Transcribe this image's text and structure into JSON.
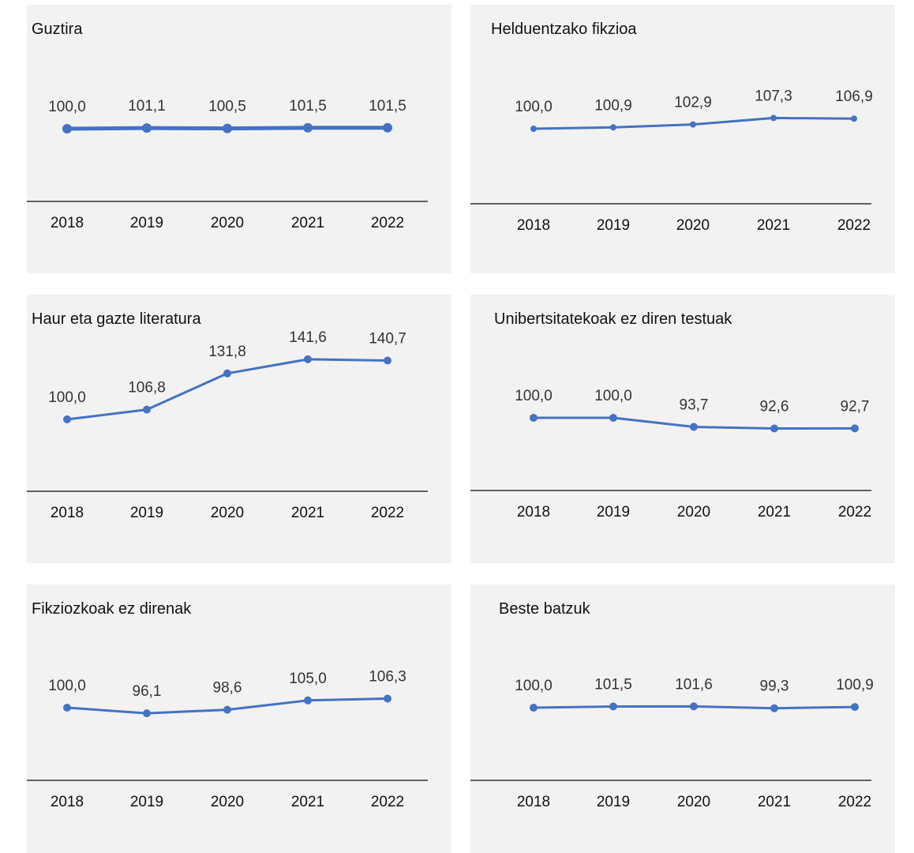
{
  "colors": {
    "line": "#4472c4",
    "panel_bg": "#f2f2f2",
    "axis": "#333333",
    "text": "#111111",
    "label": "#333333"
  },
  "chart_data": [
    {
      "type": "line",
      "title": "Guztira",
      "x": [
        "2018",
        "2019",
        "2020",
        "2021",
        "2022"
      ],
      "series": [
        {
          "values": [
            100.0,
            101.1,
            100.5,
            101.5,
            101.5
          ]
        }
      ],
      "data_labels": [
        "100,0",
        "101,1",
        "100,5",
        "101,5",
        "101,5"
      ],
      "ylim": [
        80,
        145
      ],
      "grid": false,
      "legend": "none"
    },
    {
      "type": "line",
      "title": "Helduentzako fikzioa",
      "x": [
        "2018",
        "2019",
        "2020",
        "2021",
        "2022"
      ],
      "series": [
        {
          "values": [
            100.0,
            100.9,
            102.9,
            107.3,
            106.9
          ]
        }
      ],
      "data_labels": [
        "100,0",
        "100,9",
        "102,9",
        "107,3",
        "106,9"
      ],
      "ylim": [
        80,
        145
      ],
      "grid": false,
      "legend": "none"
    },
    {
      "type": "line",
      "title": "Haur eta gazte literatura",
      "x": [
        "2018",
        "2019",
        "2020",
        "2021",
        "2022"
      ],
      "series": [
        {
          "values": [
            100.0,
            106.8,
            131.8,
            141.6,
            140.7
          ]
        }
      ],
      "data_labels": [
        "100,0",
        "106,8",
        "131,8",
        "141,6",
        "140,7"
      ],
      "ylim": [
        60,
        145
      ],
      "grid": false,
      "legend": "none"
    },
    {
      "type": "line",
      "title": "Unibertsitatekoak ez diren testuak",
      "x": [
        "2018",
        "2019",
        "2020",
        "2021",
        "2022"
      ],
      "series": [
        {
          "values": [
            100.0,
            100.0,
            93.7,
            92.6,
            92.7
          ]
        }
      ],
      "data_labels": [
        "100,0",
        "100,0",
        "93,7",
        "92,6",
        "92,7"
      ],
      "ylim": [
        60,
        145
      ],
      "grid": false,
      "legend": "none"
    },
    {
      "type": "line",
      "title": "Fikziozkoak ez direnak",
      "x": [
        "2018",
        "2019",
        "2020",
        "2021",
        "2022"
      ],
      "series": [
        {
          "values": [
            100.0,
            96.1,
            98.6,
            105.0,
            106.3
          ]
        }
      ],
      "data_labels": [
        "100,0",
        "96,1",
        "98,6",
        "105,0",
        "106,3"
      ],
      "ylim": [
        60,
        145
      ],
      "grid": false,
      "legend": "none"
    },
    {
      "type": "line",
      "title": "Beste batzuk",
      "x": [
        "2018",
        "2019",
        "2020",
        "2021",
        "2022"
      ],
      "series": [
        {
          "values": [
            100.0,
            101.5,
            101.6,
            99.3,
            100.9
          ]
        }
      ],
      "data_labels": [
        "100,0",
        "101,5",
        "101,6",
        "99,3",
        "100,9"
      ],
      "ylim": [
        60,
        145
      ],
      "grid": false,
      "legend": "none"
    }
  ]
}
